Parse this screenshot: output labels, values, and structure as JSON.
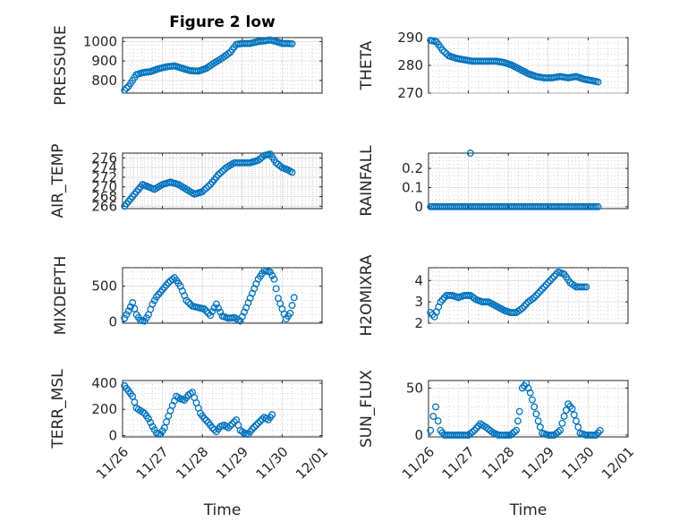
{
  "chart_data": [
    {
      "type": "scatter",
      "title": "Figure 2 low",
      "ylabel": "PRESSURE",
      "xlabel": "",
      "ylim": [
        735,
        1020
      ],
      "yticks": [
        800,
        900,
        1000
      ],
      "ytick_labels": [
        "800",
        "900",
        "1000"
      ],
      "series": [
        {
          "points": [
            [
              0.05,
              750
            ],
            [
              0.15,
              770
            ],
            [
              0.25,
              800
            ],
            [
              0.35,
              830
            ],
            [
              0.5,
              840
            ],
            [
              0.7,
              845
            ],
            [
              0.9,
              860
            ],
            [
              1.1,
              870
            ],
            [
              1.3,
              875
            ],
            [
              1.5,
              862
            ],
            [
              1.7,
              850
            ],
            [
              1.9,
              848
            ],
            [
              2.1,
              862
            ],
            [
              2.3,
              890
            ],
            [
              2.5,
              915
            ],
            [
              2.7,
              945
            ],
            [
              2.85,
              985
            ],
            [
              3.0,
              990
            ],
            [
              3.2,
              990
            ],
            [
              3.4,
              1000
            ],
            [
              3.55,
              1003
            ],
            [
              3.7,
              1008
            ],
            [
              3.85,
              1000
            ],
            [
              4.0,
              990
            ],
            [
              4.15,
              990
            ],
            [
              4.25,
              988
            ]
          ]
        }
      ]
    },
    {
      "type": "scatter",
      "ylabel": "THETA",
      "xlabel": "",
      "ylim": [
        270,
        290
      ],
      "yticks": [
        270,
        280,
        290
      ],
      "ytick_labels": [
        "270",
        "280",
        "290"
      ],
      "series": [
        {
          "points": [
            [
              0.05,
              289
            ],
            [
              0.2,
              288.5
            ],
            [
              0.35,
              285.5
            ],
            [
              0.5,
              283.5
            ],
            [
              0.7,
              282.5
            ],
            [
              0.9,
              282
            ],
            [
              1.1,
              281.5
            ],
            [
              1.3,
              281.5
            ],
            [
              1.5,
              281.5
            ],
            [
              1.7,
              281.5
            ],
            [
              1.9,
              281
            ],
            [
              2.1,
              280
            ],
            [
              2.3,
              278.5
            ],
            [
              2.5,
              277
            ],
            [
              2.7,
              276
            ],
            [
              2.9,
              275.5
            ],
            [
              3.1,
              275.5
            ],
            [
              3.3,
              276
            ],
            [
              3.5,
              275.5
            ],
            [
              3.7,
              276
            ],
            [
              3.9,
              275
            ],
            [
              4.1,
              274.5
            ],
            [
              4.25,
              274
            ]
          ]
        }
      ]
    },
    {
      "type": "scatter",
      "ylabel": "AIR_TEMP",
      "xlabel": "",
      "ylim": [
        265.5,
        277
      ],
      "yticks": [
        266,
        268,
        270,
        272,
        274,
        276
      ],
      "ytick_labels": [
        "266",
        "268",
        "270",
        "272",
        "274",
        "276"
      ],
      "series": [
        {
          "points": [
            [
              0.05,
              266
            ],
            [
              0.2,
              267.5
            ],
            [
              0.35,
              269
            ],
            [
              0.5,
              270.5
            ],
            [
              0.65,
              270
            ],
            [
              0.8,
              269.5
            ],
            [
              1.0,
              270.5
            ],
            [
              1.2,
              271
            ],
            [
              1.4,
              270.5
            ],
            [
              1.6,
              269.5
            ],
            [
              1.8,
              268.5
            ],
            [
              2.0,
              269
            ],
            [
              2.2,
              270.5
            ],
            [
              2.4,
              272.5
            ],
            [
              2.6,
              274
            ],
            [
              2.8,
              275
            ],
            [
              3.0,
              275
            ],
            [
              3.2,
              275
            ],
            [
              3.4,
              275.5
            ],
            [
              3.55,
              276.5
            ],
            [
              3.7,
              276.8
            ],
            [
              3.85,
              275
            ],
            [
              4.0,
              274
            ],
            [
              4.15,
              273.5
            ],
            [
              4.25,
              273
            ]
          ]
        }
      ]
    },
    {
      "type": "scatter",
      "ylabel": "RAINFALL",
      "xlabel": "",
      "ylim": [
        -0.01,
        0.28
      ],
      "yticks": [
        0,
        0.1,
        0.2
      ],
      "ytick_labels": [
        "0",
        "0.1",
        "0.2"
      ],
      "series": [
        {
          "points": [
            [
              0.05,
              0
            ],
            [
              0.4,
              0
            ],
            [
              0.8,
              0
            ],
            [
              1.2,
              0
            ],
            [
              1.6,
              0
            ],
            [
              2.0,
              0
            ],
            [
              2.4,
              0
            ],
            [
              2.8,
              0
            ],
            [
              3.2,
              0
            ],
            [
              3.6,
              0
            ],
            [
              4.0,
              0
            ],
            [
              4.25,
              0
            ],
            [
              1.05,
              0.28
            ]
          ]
        }
      ]
    },
    {
      "type": "scatter",
      "ylabel": "MIXDEPTH",
      "xlabel": "",
      "ylim": [
        -20,
        760
      ],
      "yticks": [
        0,
        500
      ],
      "ytick_labels": [
        "0",
        "500"
      ],
      "series": [
        {
          "points": [
            [
              0.05,
              50
            ],
            [
              0.15,
              150
            ],
            [
              0.25,
              270
            ],
            [
              0.35,
              100
            ],
            [
              0.45,
              20
            ],
            [
              0.55,
              10
            ],
            [
              0.65,
              100
            ],
            [
              0.75,
              250
            ],
            [
              0.85,
              350
            ],
            [
              1.0,
              450
            ],
            [
              1.15,
              550
            ],
            [
              1.3,
              620
            ],
            [
              1.45,
              500
            ],
            [
              1.6,
              300
            ],
            [
              1.75,
              220
            ],
            [
              1.9,
              200
            ],
            [
              2.05,
              180
            ],
            [
              2.2,
              90
            ],
            [
              2.35,
              250
            ],
            [
              2.5,
              80
            ],
            [
              2.65,
              50
            ],
            [
              2.8,
              60
            ],
            [
              2.95,
              10
            ],
            [
              3.1,
              200
            ],
            [
              3.25,
              400
            ],
            [
              3.4,
              600
            ],
            [
              3.55,
              720
            ],
            [
              3.7,
              700
            ],
            [
              3.8,
              600
            ],
            [
              3.9,
              330
            ],
            [
              4.0,
              180
            ],
            [
              4.1,
              40
            ],
            [
              4.2,
              120
            ],
            [
              4.3,
              340
            ]
          ]
        }
      ]
    },
    {
      "type": "scatter",
      "ylabel": "H2OMIXRA",
      "xlabel": "",
      "ylim": [
        2.0,
        4.6
      ],
      "yticks": [
        2,
        3,
        4
      ],
      "ytick_labels": [
        "2",
        "3",
        "4"
      ],
      "series": [
        {
          "points": [
            [
              0.05,
              2.5
            ],
            [
              0.15,
              2.3
            ],
            [
              0.3,
              3.0
            ],
            [
              0.45,
              3.3
            ],
            [
              0.6,
              3.3
            ],
            [
              0.75,
              3.2
            ],
            [
              0.9,
              3.3
            ],
            [
              1.05,
              3.3
            ],
            [
              1.2,
              3.1
            ],
            [
              1.35,
              3.0
            ],
            [
              1.5,
              3.0
            ],
            [
              1.7,
              2.8
            ],
            [
              1.9,
              2.6
            ],
            [
              2.05,
              2.5
            ],
            [
              2.2,
              2.5
            ],
            [
              2.35,
              2.7
            ],
            [
              2.5,
              3.0
            ],
            [
              2.65,
              3.2
            ],
            [
              2.8,
              3.5
            ],
            [
              2.95,
              3.8
            ],
            [
              3.1,
              4.1
            ],
            [
              3.25,
              4.4
            ],
            [
              3.4,
              4.3
            ],
            [
              3.55,
              3.9
            ],
            [
              3.7,
              3.7
            ],
            [
              3.85,
              3.7
            ],
            [
              3.95,
              3.7
            ]
          ]
        }
      ]
    },
    {
      "type": "scatter",
      "ylabel": "TERR_MSL",
      "xlabel": "Time",
      "ylim": [
        -10,
        420
      ],
      "yticks": [
        0,
        200,
        400
      ],
      "ytick_labels": [
        "0",
        "200",
        "400"
      ],
      "xticks": [
        0,
        1,
        2,
        3,
        4,
        5
      ],
      "xtick_labels": [
        "11/26",
        "11/27",
        "11/28",
        "11/29",
        "11/30",
        "12/01"
      ],
      "series": [
        {
          "points": [
            [
              0.05,
              380
            ],
            [
              0.15,
              340
            ],
            [
              0.25,
              300
            ],
            [
              0.35,
              210
            ],
            [
              0.45,
              190
            ],
            [
              0.55,
              170
            ],
            [
              0.65,
              130
            ],
            [
              0.75,
              70
            ],
            [
              0.85,
              20
            ],
            [
              0.95,
              10
            ],
            [
              1.05,
              60
            ],
            [
              1.15,
              150
            ],
            [
              1.25,
              230
            ],
            [
              1.35,
              300
            ],
            [
              1.45,
              280
            ],
            [
              1.55,
              270
            ],
            [
              1.65,
              310
            ],
            [
              1.75,
              330
            ],
            [
              1.85,
              250
            ],
            [
              1.95,
              170
            ],
            [
              2.05,
              130
            ],
            [
              2.15,
              100
            ],
            [
              2.25,
              60
            ],
            [
              2.35,
              30
            ],
            [
              2.45,
              70
            ],
            [
              2.55,
              80
            ],
            [
              2.65,
              60
            ],
            [
              2.75,
              90
            ],
            [
              2.85,
              120
            ],
            [
              2.95,
              40
            ],
            [
              3.05,
              20
            ],
            [
              3.15,
              10
            ],
            [
              3.25,
              50
            ],
            [
              3.35,
              80
            ],
            [
              3.45,
              110
            ],
            [
              3.55,
              140
            ],
            [
              3.65,
              120
            ],
            [
              3.75,
              160
            ]
          ]
        }
      ]
    },
    {
      "type": "scatter",
      "ylabel": "SUN_FLUX",
      "xlabel": "Time",
      "ylim": [
        -2,
        58
      ],
      "yticks": [
        0,
        50
      ],
      "ytick_labels": [
        "0",
        "50"
      ],
      "xticks": [
        0,
        1,
        2,
        3,
        4,
        5
      ],
      "xtick_labels": [
        "11/26",
        "11/27",
        "11/28",
        "11/29",
        "11/30",
        "12/01"
      ],
      "series": [
        {
          "points": [
            [
              0.05,
              5
            ],
            [
              0.12,
              20
            ],
            [
              0.18,
              30
            ],
            [
              0.24,
              15
            ],
            [
              0.3,
              5
            ],
            [
              0.4,
              0
            ],
            [
              0.6,
              0
            ],
            [
              0.8,
              0
            ],
            [
              1.0,
              0
            ],
            [
              1.15,
              5
            ],
            [
              1.3,
              12
            ],
            [
              1.45,
              8
            ],
            [
              1.6,
              3
            ],
            [
              1.75,
              0
            ],
            [
              1.9,
              0
            ],
            [
              2.05,
              0
            ],
            [
              2.2,
              5
            ],
            [
              2.28,
              25
            ],
            [
              2.35,
              50
            ],
            [
              2.45,
              55
            ],
            [
              2.55,
              45
            ],
            [
              2.65,
              30
            ],
            [
              2.75,
              15
            ],
            [
              2.85,
              2
            ],
            [
              3.0,
              0
            ],
            [
              3.15,
              0
            ],
            [
              3.3,
              5
            ],
            [
              3.4,
              20
            ],
            [
              3.5,
              33
            ],
            [
              3.6,
              28
            ],
            [
              3.7,
              15
            ],
            [
              3.8,
              2
            ],
            [
              3.95,
              0
            ],
            [
              4.1,
              0
            ],
            [
              4.2,
              0
            ],
            [
              4.3,
              5
            ]
          ]
        }
      ]
    }
  ]
}
